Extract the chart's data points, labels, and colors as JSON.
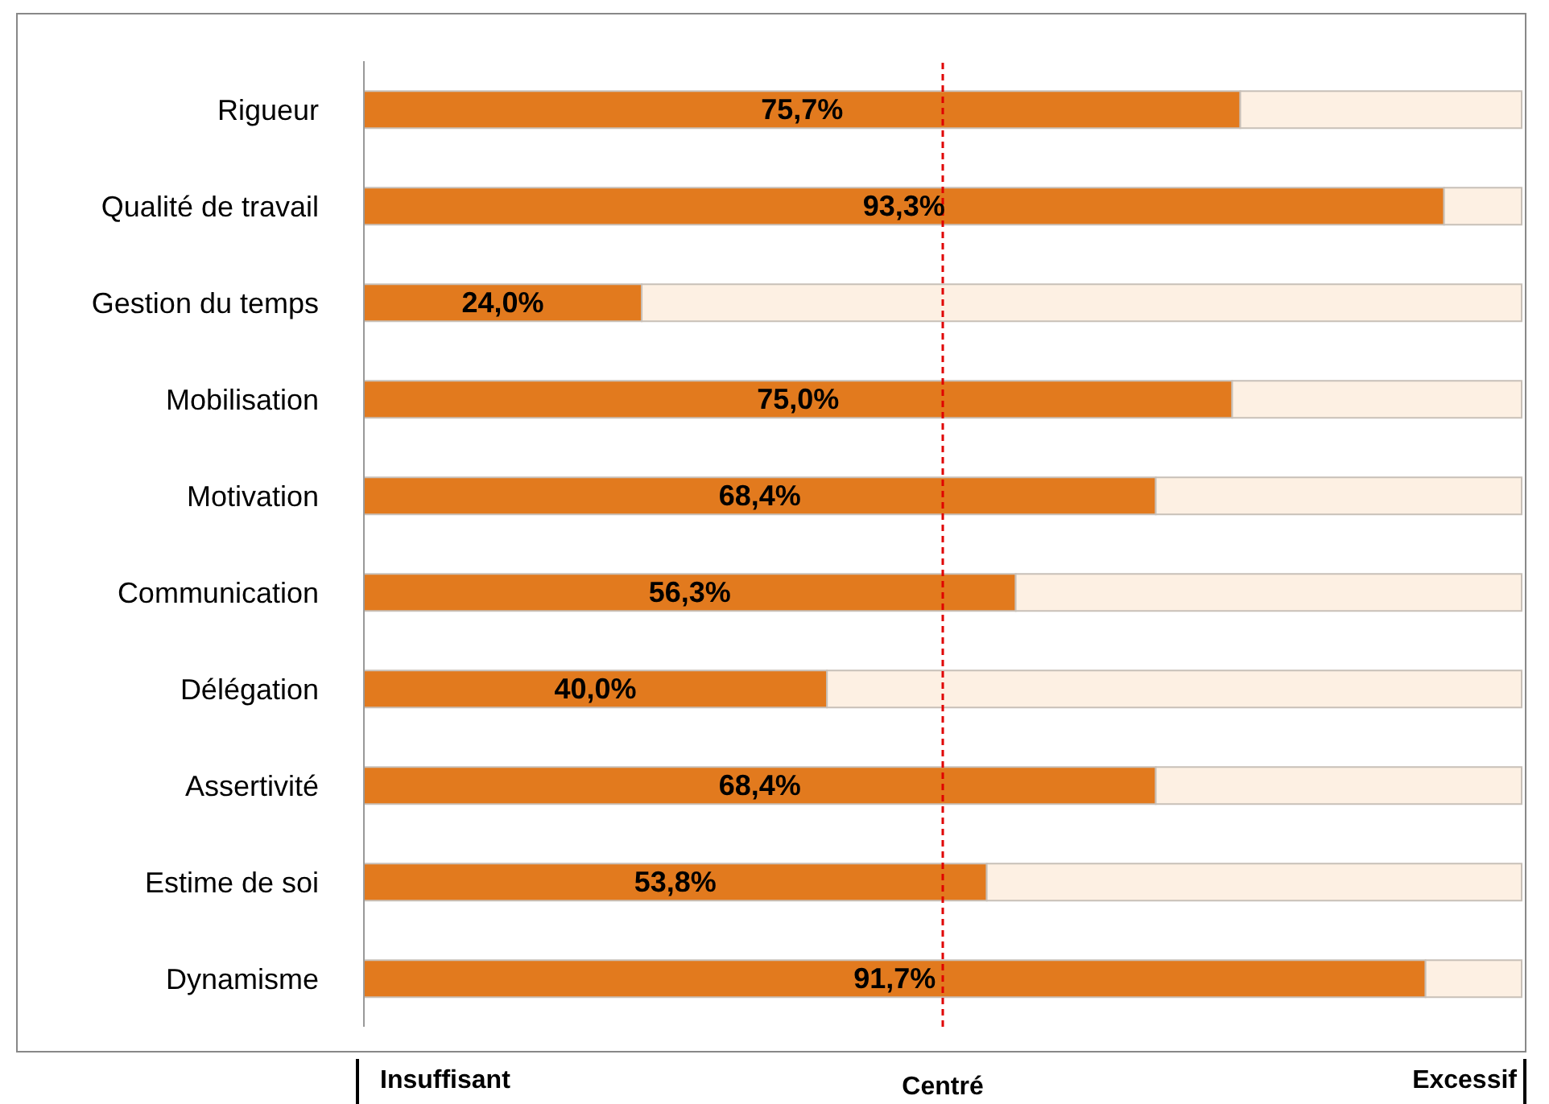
{
  "chart_data": {
    "type": "bar",
    "orientation": "horizontal",
    "stacked": true,
    "categories": [
      "Rigueur",
      "Qualité de travail",
      "Gestion du temps",
      "Mobilisation",
      "Motivation",
      "Communication",
      "Délégation",
      "Assertivité",
      "Estime de soi",
      "Dynamisme"
    ],
    "series": [
      {
        "color": "#e27a1e",
        "values": [
          75.7,
          93.3,
          24.0,
          75.0,
          68.4,
          56.3,
          40.0,
          68.4,
          53.8,
          91.7
        ],
        "value_labels": [
          "75,7%",
          "93,3%",
          "24,0%",
          "75,0%",
          "68,4%",
          "56,3%",
          "40,0%",
          "68,4%",
          "53,8%",
          "91,7%"
        ]
      },
      {
        "color": "#fdf0e3",
        "values": [
          24.3,
          6.7,
          76.0,
          25.0,
          31.6,
          43.7,
          60.0,
          31.6,
          46.2,
          8.3
        ]
      }
    ],
    "ref_lines": [
      {
        "axis": "x",
        "value": 50,
        "label": "Centré",
        "color": "#e00000",
        "line_style": "dashed"
      }
    ],
    "annotations": [
      "Insuffisant",
      "Excessif"
    ],
    "grid": false,
    "legend": false
  }
}
